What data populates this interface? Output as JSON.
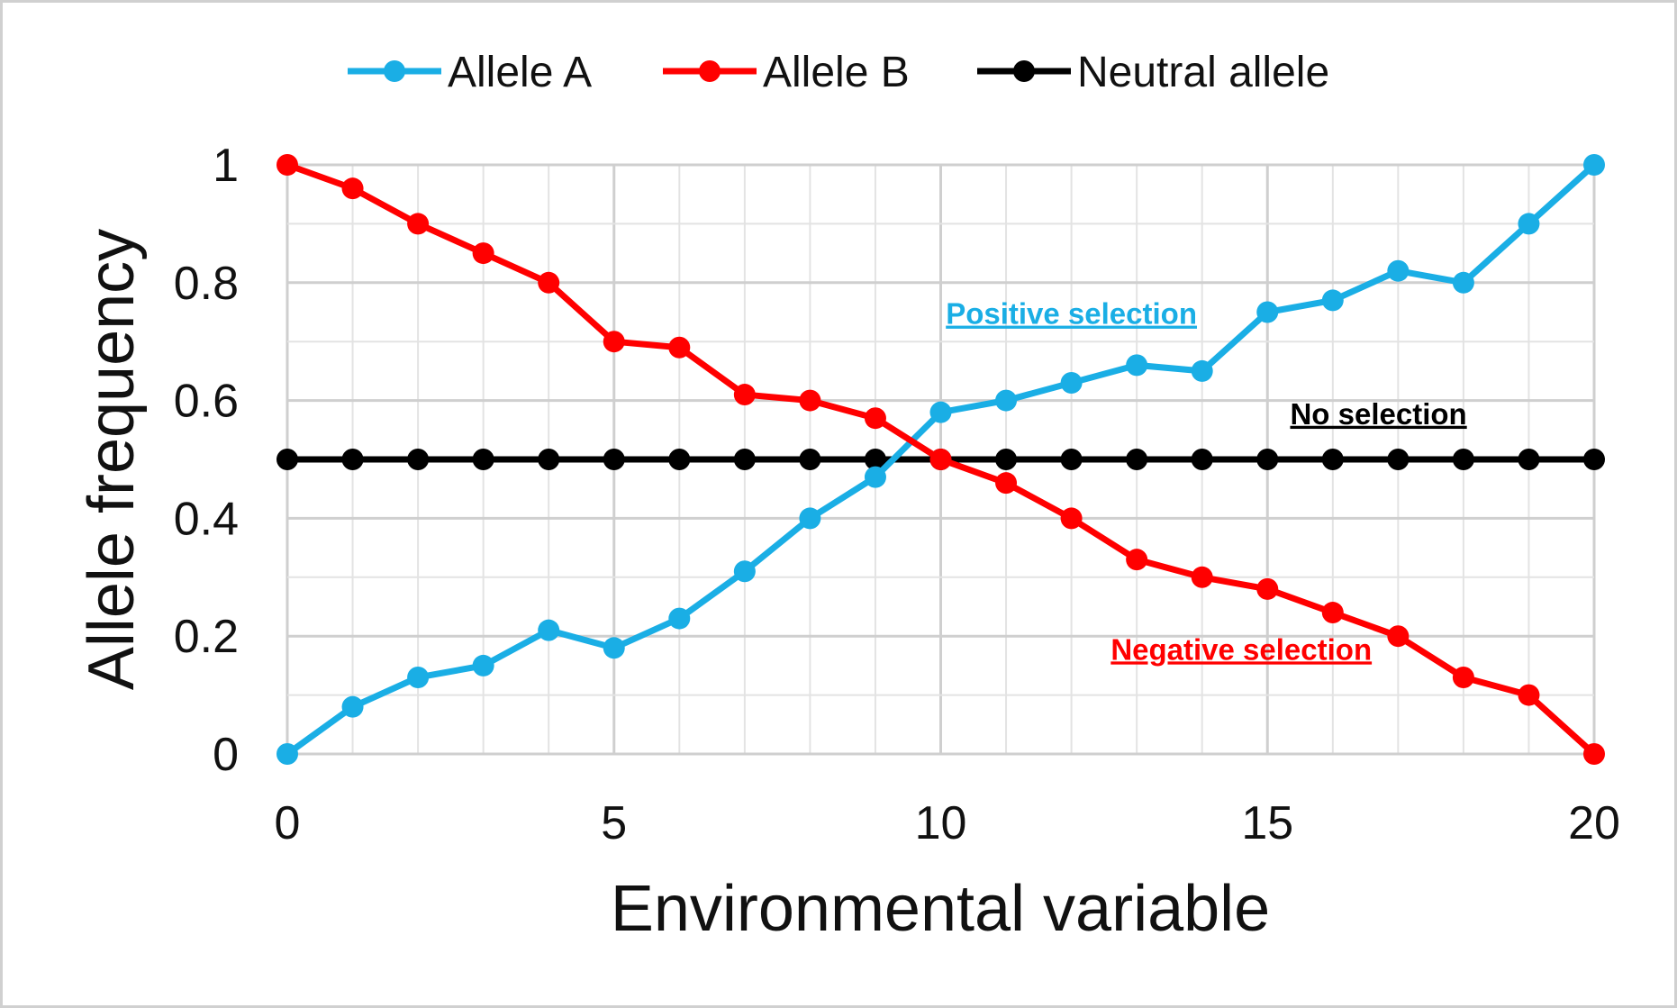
{
  "chart_data": {
    "type": "line",
    "title": "",
    "xlabel": "Environmental variable",
    "ylabel": "Allele frequency",
    "xlim": [
      0,
      20
    ],
    "ylim": [
      0,
      1
    ],
    "xticks": [
      "0",
      "5",
      "10",
      "15",
      "20"
    ],
    "yticks": [
      "0",
      "0.2",
      "0.4",
      "0.6",
      "0.8",
      "1"
    ],
    "grid": true,
    "legend_position": "top",
    "x": [
      0,
      1,
      2,
      3,
      4,
      5,
      6,
      7,
      8,
      9,
      10,
      11,
      12,
      13,
      14,
      15,
      16,
      17,
      18,
      19,
      20
    ],
    "series": [
      {
        "name": "Allele A",
        "color": "#1AAEE5",
        "values": [
          0,
          0.08,
          0.13,
          0.15,
          0.21,
          0.18,
          0.23,
          0.31,
          0.4,
          0.47,
          0.58,
          0.6,
          0.63,
          0.66,
          0.65,
          0.75,
          0.77,
          0.82,
          0.8,
          0.9,
          1
        ]
      },
      {
        "name": "Allele B",
        "color": "#FF0000",
        "values": [
          1,
          0.96,
          0.9,
          0.85,
          0.8,
          0.7,
          0.69,
          0.61,
          0.6,
          0.57,
          0.5,
          0.46,
          0.4,
          0.33,
          0.3,
          0.28,
          0.24,
          0.2,
          0.13,
          0.1,
          0
        ]
      },
      {
        "name": "Neutral allele",
        "color": "#000000",
        "values": [
          0.5,
          0.5,
          0.5,
          0.5,
          0.5,
          0.5,
          0.5,
          0.5,
          0.5,
          0.5,
          0.5,
          0.5,
          0.5,
          0.5,
          0.5,
          0.5,
          0.5,
          0.5,
          0.5,
          0.5,
          0.5
        ]
      }
    ],
    "annotations": [
      {
        "text": "Positive selection",
        "color": "#1AAEE5",
        "x": 12,
        "y": 0.73
      },
      {
        "text": "No selection",
        "color": "#000000",
        "x": 16.7,
        "y": 0.56
      },
      {
        "text": "Negative selection",
        "color": "#FF0000",
        "x": 14.6,
        "y": 0.16
      }
    ]
  }
}
